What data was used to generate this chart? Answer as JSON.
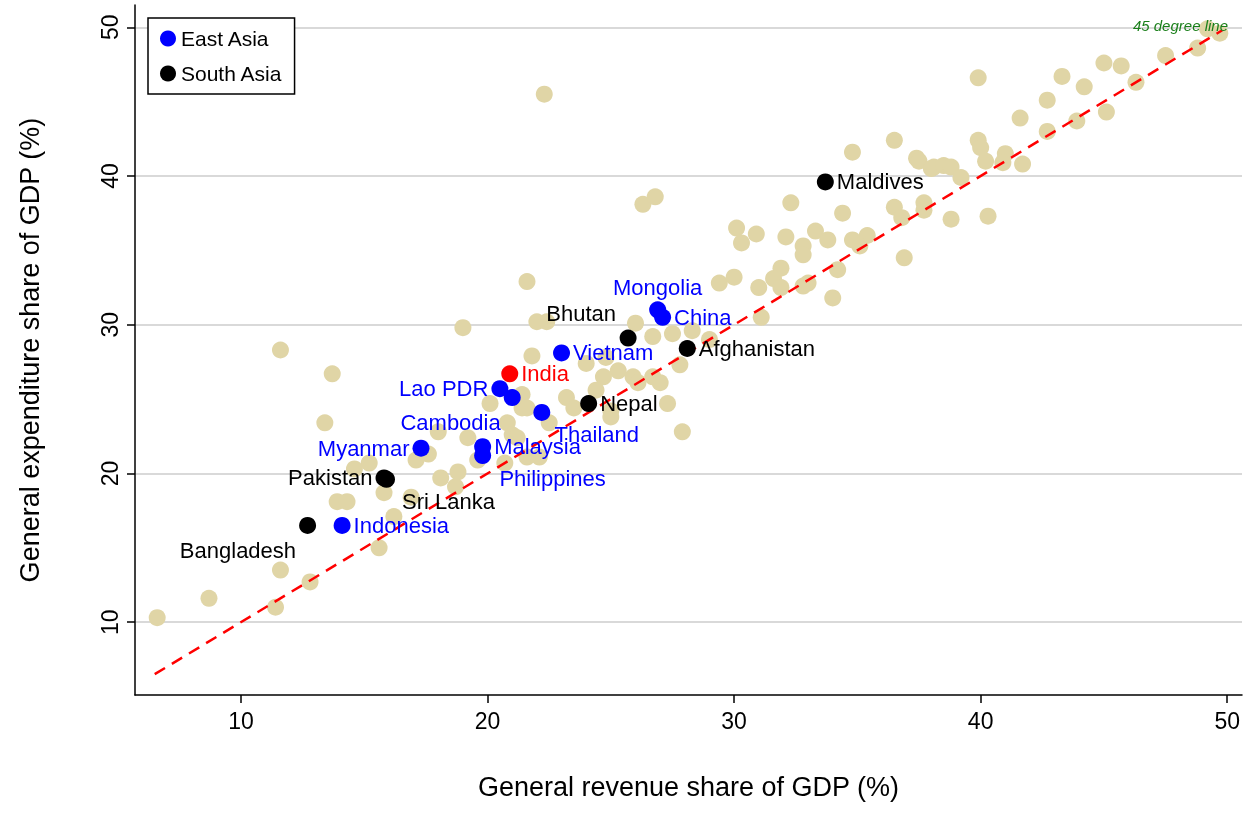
{
  "chart_data": {
    "type": "scatter",
    "xlabel": "General revenue share of GDP (%)",
    "ylabel": "General expenditure share of GDP (%)",
    "xlim": [
      5.7,
      50.6
    ],
    "xticks": [
      10,
      20,
      30,
      40,
      50
    ],
    "ylim": [
      5.1,
      51.5
    ],
    "yticks": [
      10,
      20,
      30,
      40,
      50
    ],
    "grid": "y",
    "legend": "top left",
    "marker": "circle",
    "annotations": [
      "45 degree line"
    ],
    "series": [
      {
        "color": "#e0d5a6",
        "x": [
          21.6,
          19.0,
          11.6,
          13.7,
          13.4,
          21.8,
          22.0,
          20.1,
          21.4,
          18.0,
          19.2,
          20.8,
          17.6,
          17.1,
          15.2,
          14.6,
          19.6,
          20.7,
          18.1,
          18.8,
          18.7,
          15.8,
          13.9,
          14.3,
          16.9,
          16.2,
          15.6,
          11.6,
          12.8,
          8.7,
          11.4,
          6.6,
          21.4,
          21.0,
          22.4,
          26.0,
          26.7,
          27.5,
          28.3,
          29.0,
          29.4,
          30.0,
          27.8,
          24.8,
          24.0,
          25.3,
          25.9,
          24.7,
          26.7,
          24.4,
          23.2,
          23.5,
          25.0,
          27.3,
          27.9,
          25.0,
          22.5,
          21.6,
          21.2,
          22.1,
          21.6,
          22.3,
          26.3,
          26.8,
          30.1,
          30.3,
          30.9,
          32.3,
          32.1,
          34.4,
          32.8,
          33.3,
          33.8,
          32.8,
          34.8,
          35.4,
          36.9,
          31.9,
          31.6,
          34.2,
          31.0,
          31.9,
          32.8,
          33.0,
          34.0,
          31.1,
          27.0,
          26.1,
          37.4,
          38.1,
          36.5,
          37.7,
          39.9,
          45.0,
          45.7,
          47.5,
          43.3,
          44.2,
          46.3,
          42.7,
          41.6,
          45.1,
          42.7,
          43.9,
          48.8,
          49.7,
          49.2,
          36.5,
          34.8,
          37.5,
          38.0,
          38.5,
          38.8,
          39.2,
          39.9,
          40.0,
          40.2,
          41.0,
          40.9,
          41.7,
          36.8,
          37.7,
          38.8,
          40.3,
          35.1
        ],
        "values": [
          32.9,
          29.8,
          28.3,
          26.7,
          23.4,
          27.9,
          30.2,
          24.7,
          24.4,
          22.8,
          22.4,
          23.4,
          21.3,
          20.9,
          20.7,
          20.3,
          20.9,
          20.7,
          19.7,
          20.1,
          19.1,
          18.7,
          18.1,
          18.1,
          18.4,
          17.1,
          15.0,
          13.5,
          12.7,
          11.6,
          11.0,
          10.3,
          25.3,
          22.6,
          30.2,
          30.1,
          29.2,
          29.4,
          29.6,
          29.0,
          32.8,
          33.2,
          27.3,
          27.8,
          27.4,
          26.9,
          26.5,
          26.5,
          26.5,
          25.6,
          25.1,
          24.4,
          24.2,
          24.7,
          22.8,
          23.8,
          23.4,
          24.4,
          22.4,
          21.1,
          21.1,
          45.5,
          38.1,
          38.6,
          36.5,
          35.5,
          36.1,
          38.2,
          35.9,
          37.5,
          35.3,
          36.3,
          35.7,
          34.7,
          35.7,
          36.0,
          34.5,
          33.8,
          33.1,
          33.7,
          32.5,
          32.5,
          32.6,
          32.8,
          31.8,
          30.5,
          26.1,
          26.1,
          41.2,
          40.6,
          37.9,
          38.2,
          46.6,
          47.6,
          47.4,
          48.1,
          46.7,
          46.0,
          46.3,
          45.1,
          43.9,
          44.3,
          43.0,
          43.7,
          48.6,
          49.6,
          49.9,
          42.4,
          41.6,
          41.0,
          40.5,
          40.7,
          40.6,
          39.9,
          42.4,
          41.9,
          41.0,
          41.5,
          40.9,
          40.8,
          37.2,
          37.7,
          37.1,
          37.3,
          35.3
        ]
      },
      {
        "type": "line",
        "color": "#ff0000",
        "line_style": "dashed",
        "marker": "none",
        "x": [
          6.5,
          49.8
        ],
        "values": [
          6.5,
          49.8
        ]
      },
      {
        "name": "East Asia",
        "color": "#0000ff",
        "x": [
          26.9,
          27.1,
          23.0,
          20.5,
          21.0,
          22.2,
          19.8,
          19.8,
          17.3,
          14.1
        ],
        "values": [
          31.0,
          30.5,
          28.1,
          25.7,
          25.1,
          24.1,
          21.8,
          21.2,
          21.7,
          16.5
        ],
        "value_labels": [
          "Mongolia",
          "China",
          "Vietnam",
          "Lao PDR",
          "Cambodia",
          "Thailand",
          "Malaysia",
          "Philippines",
          "Myanmar",
          "Indonesia"
        ]
      },
      {
        "name": "South Asia",
        "color": "#000000",
        "x": [
          25.7,
          28.1,
          24.1,
          33.7,
          15.8,
          15.9,
          12.7
        ],
        "values": [
          29.1,
          28.4,
          24.7,
          39.6,
          19.7,
          19.6,
          16.5
        ],
        "value_labels": [
          "Bhutan",
          "Afghanistan",
          "Nepal",
          "Maldives",
          "Pakistan",
          "Sri Lanka",
          "Bangladesh"
        ]
      },
      {
        "color": "#ff0000",
        "x": [
          20.9
        ],
        "values": [
          26.7
        ],
        "value_labels": [
          "India"
        ]
      }
    ]
  }
}
